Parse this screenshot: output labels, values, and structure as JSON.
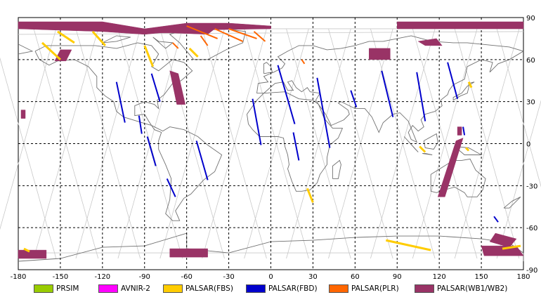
{
  "map": {
    "lon_ticks": [
      "-180",
      "-150",
      "-120",
      "-90",
      "-60",
      "-30",
      "0",
      "30",
      "60",
      "90",
      "120",
      "150",
      "180"
    ],
    "lat_ticks": [
      "90",
      "60",
      "30",
      "0",
      "-30",
      "-60",
      "-90"
    ],
    "lon_range": [
      -180,
      180
    ],
    "lat_range": [
      -90,
      90
    ],
    "grid": "dashed",
    "projection": "equirectangular"
  },
  "legend": [
    {
      "label": "PRSIM",
      "color": "#99cc00"
    },
    {
      "label": "AVNIR-2",
      "color": "#ff00ff"
    },
    {
      "label": "PALSAR(FBS)",
      "color": "#ffcc00"
    },
    {
      "label": "PALSAR(FBD)",
      "color": "#0000cc"
    },
    {
      "label": "PALSAR(PLR)",
      "color": "#ff6600"
    },
    {
      "label": "PALSAR(WB1/WB2)",
      "color": "#993366"
    }
  ],
  "observations": {
    "wb": [
      [
        [
          -180,
          87
        ],
        [
          -120,
          87
        ],
        [
          -90,
          82
        ],
        [
          -60,
          86
        ],
        [
          -30,
          86
        ],
        [
          0,
          84
        ],
        [
          0,
          82
        ],
        [
          -60,
          81
        ],
        [
          -90,
          78
        ],
        [
          -120,
          80
        ],
        [
          -150,
          81
        ],
        [
          -180,
          82
        ]
      ],
      [
        [
          -85,
          82
        ],
        [
          -60,
          84
        ],
        [
          -40,
          82
        ],
        [
          -45,
          78
        ],
        [
          -70,
          79
        ],
        [
          -85,
          79
        ]
      ],
      [
        [
          -150,
          67
        ],
        [
          -142,
          67
        ],
        [
          -146,
          59
        ],
        [
          -154,
          59
        ]
      ],
      [
        [
          -72,
          52
        ],
        [
          -66,
          50
        ],
        [
          -61,
          28
        ],
        [
          -67,
          28
        ]
      ],
      [
        [
          -178,
          24
        ],
        [
          -175,
          24
        ],
        [
          -175,
          18
        ],
        [
          -178,
          18
        ]
      ],
      [
        [
          -180,
          -76
        ],
        [
          -160,
          -76
        ],
        [
          -160,
          -82
        ],
        [
          -180,
          -82
        ]
      ],
      [
        [
          -72,
          -75
        ],
        [
          -45,
          -75
        ],
        [
          -45,
          -81
        ],
        [
          -72,
          -81
        ]
      ],
      [
        [
          70,
          68
        ],
        [
          85,
          68
        ],
        [
          85,
          60
        ],
        [
          70,
          60
        ]
      ],
      [
        [
          105,
          73
        ],
        [
          118,
          75
        ],
        [
          122,
          70
        ],
        [
          110,
          70
        ]
      ],
      [
        [
          90,
          87
        ],
        [
          180,
          87
        ],
        [
          180,
          82
        ],
        [
          90,
          82
        ]
      ],
      [
        [
          132,
          2
        ],
        [
          137,
          4
        ],
        [
          124,
          -38
        ],
        [
          119,
          -38
        ]
      ],
      [
        [
          133,
          12
        ],
        [
          136,
          12
        ],
        [
          136,
          6
        ],
        [
          133,
          6
        ]
      ],
      [
        [
          160,
          -64
        ],
        [
          175,
          -68
        ],
        [
          170,
          -74
        ],
        [
          156,
          -70
        ]
      ],
      [
        [
          150,
          -73
        ],
        [
          175,
          -73
        ],
        [
          180,
          -80
        ],
        [
          152,
          -80
        ]
      ]
    ],
    "fbs": [
      [
        [
          -152,
          80
        ],
        [
          -140,
          72
        ]
      ],
      [
        [
          -163,
          72
        ],
        [
          -150,
          60
        ]
      ],
      [
        [
          -127,
          80
        ],
        [
          -118,
          70
        ]
      ],
      [
        [
          -90,
          70
        ],
        [
          -84,
          55
        ]
      ],
      [
        [
          -58,
          68
        ],
        [
          -52,
          62
        ]
      ],
      [
        [
          26,
          -32
        ],
        [
          30,
          -42
        ]
      ],
      [
        [
          82,
          -69
        ],
        [
          114,
          -76
        ]
      ],
      [
        [
          141,
          44
        ],
        [
          143,
          40
        ]
      ],
      [
        [
          106,
          -2
        ],
        [
          110,
          -6
        ]
      ],
      [
        [
          165,
          -75
        ],
        [
          178,
          -73
        ]
      ],
      [
        [
          -176,
          -75
        ],
        [
          -172,
          -77
        ]
      ],
      [
        [
          139,
          -3
        ],
        [
          141,
          -5
        ]
      ]
    ],
    "fbd": [
      [
        [
          -110,
          44
        ],
        [
          -104,
          15
        ]
      ],
      [
        [
          -85,
          50
        ],
        [
          -79,
          30
        ]
      ],
      [
        [
          -94,
          20
        ],
        [
          -92,
          7
        ]
      ],
      [
        [
          -88,
          5
        ],
        [
          -82,
          -16
        ]
      ],
      [
        [
          -74,
          -25
        ],
        [
          -68,
          -38
        ]
      ],
      [
        [
          -53,
          2
        ],
        [
          -45,
          -26
        ]
      ],
      [
        [
          -13,
          32
        ],
        [
          -7,
          -1
        ]
      ],
      [
        [
          5,
          56
        ],
        [
          17,
          14
        ]
      ],
      [
        [
          16,
          8
        ],
        [
          20,
          -12
        ]
      ],
      [
        [
          33,
          47
        ],
        [
          42,
          -3
        ]
      ],
      [
        [
          57,
          38
        ],
        [
          61,
          26
        ]
      ],
      [
        [
          79,
          52
        ],
        [
          87,
          19
        ]
      ],
      [
        [
          104,
          51
        ],
        [
          110,
          16
        ]
      ],
      [
        [
          126,
          58
        ],
        [
          133,
          32
        ]
      ],
      [
        [
          137,
          12
        ],
        [
          138,
          6
        ]
      ],
      [
        [
          159,
          -52
        ],
        [
          162,
          -56
        ]
      ]
    ],
    "plr": [
      [
        [
          -60,
          84
        ],
        [
          -38,
          75
        ]
      ],
      [
        [
          -40,
          82
        ],
        [
          -20,
          73
        ]
      ],
      [
        [
          -12,
          80
        ],
        [
          -4,
          73
        ]
      ],
      [
        [
          -30,
          82
        ],
        [
          -10,
          75
        ]
      ],
      [
        [
          -70,
          72
        ],
        [
          -66,
          68
        ]
      ],
      [
        [
          -50,
          77
        ],
        [
          -45,
          70
        ]
      ],
      [
        [
          22,
          60
        ],
        [
          24,
          57
        ]
      ]
    ]
  }
}
